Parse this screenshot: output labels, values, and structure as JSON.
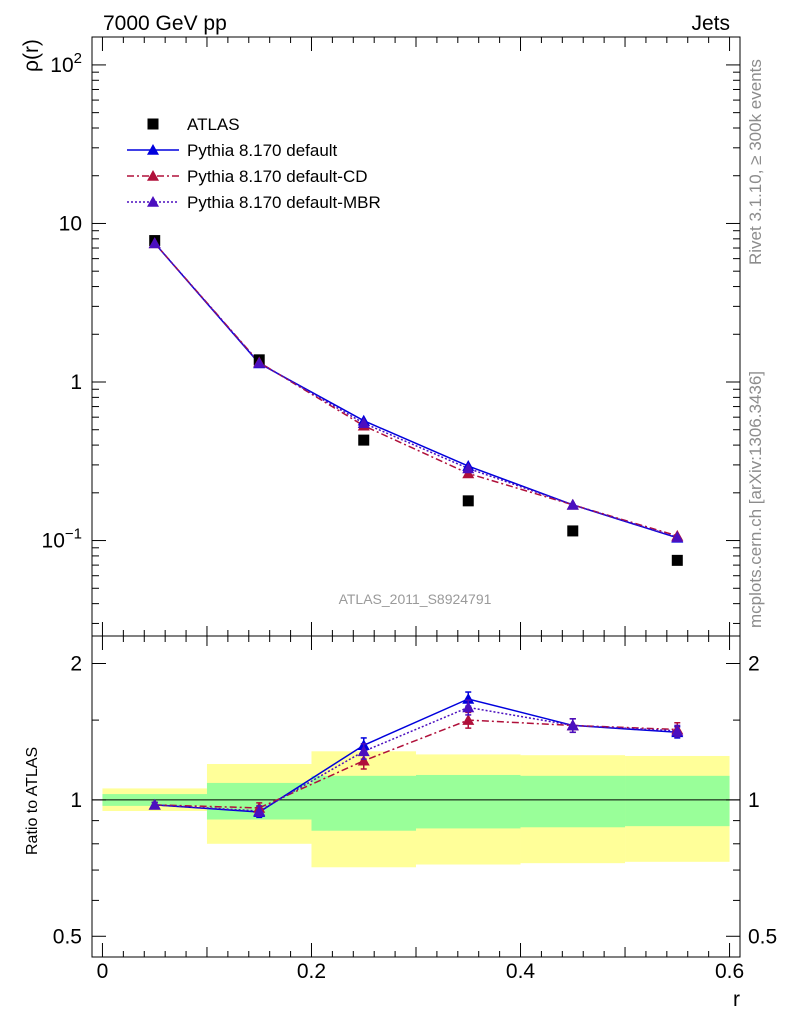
{
  "header": {
    "left": "7000 GeV pp",
    "right": "Jets"
  },
  "side_labels": {
    "rivet": "Rivet 3.1.10, ≥ 300k events",
    "mcplots": "mcplots.cern.ch [arXiv:1306.3436]"
  },
  "watermark": "ATLAS_2011_S8924791",
  "chart_data": [
    {
      "type": "line",
      "panel": "main",
      "ylabel": "ρ(r)",
      "yscale": "log",
      "ylim": [
        0.025,
        150
      ],
      "xlim": [
        -0.01,
        0.61
      ],
      "y_ticks": [
        {
          "value": 0.1,
          "base": "10",
          "exp": "−1"
        },
        {
          "value": 1,
          "label": "1"
        },
        {
          "value": 10,
          "label": "10"
        },
        {
          "value": 100,
          "base": "10",
          "exp": "2"
        }
      ],
      "legend_position": "top-left",
      "series": [
        {
          "name": "ATLAS",
          "marker": "square",
          "color": "#000000",
          "x": [
            0.05,
            0.15,
            0.25,
            0.35,
            0.45,
            0.55
          ],
          "y": [
            7.8,
            1.38,
            0.43,
            0.178,
            0.115,
            0.075
          ]
        },
        {
          "name": "Pythia 8.170 default",
          "marker": "triangle",
          "line": "solid",
          "color": "#0000dd",
          "x": [
            0.05,
            0.15,
            0.25,
            0.35,
            0.45,
            0.55
          ],
          "y": [
            7.5,
            1.31,
            0.57,
            0.295,
            0.168,
            0.104
          ]
        },
        {
          "name": "Pythia 8.170 default-CD",
          "marker": "triangle",
          "line": "dashdot",
          "color": "#b0103a",
          "x": [
            0.05,
            0.15,
            0.25,
            0.35,
            0.45,
            0.55
          ],
          "y": [
            7.5,
            1.33,
            0.53,
            0.265,
            0.168,
            0.107
          ]
        },
        {
          "name": "Pythia 8.170 default-MBR",
          "marker": "triangle",
          "line": "dotted",
          "color": "#4b0fbf",
          "x": [
            0.05,
            0.15,
            0.25,
            0.35,
            0.45,
            0.55
          ],
          "y": [
            7.5,
            1.32,
            0.55,
            0.285,
            0.168,
            0.105
          ]
        }
      ]
    },
    {
      "type": "line",
      "panel": "ratio",
      "ylabel": "Ratio to ATLAS",
      "xlabel": "r",
      "ylim": [
        0.45,
        2.3
      ],
      "xlim": [
        -0.01,
        0.61
      ],
      "x_ticks": [
        0,
        0.2,
        0.4,
        0.6
      ],
      "x_tick_labels": [
        "0",
        "0.2",
        "0.4",
        "0.6"
      ],
      "y_ticks": [
        0.5,
        1,
        2
      ],
      "y_tick_labels": [
        "0.5",
        "1",
        "2"
      ],
      "bands": {
        "x_edges": [
          0.0,
          0.1,
          0.2,
          0.3,
          0.4,
          0.5,
          0.6
        ],
        "inner_lo": [
          0.97,
          0.905,
          0.855,
          0.865,
          0.87,
          0.875
        ],
        "inner_hi": [
          1.03,
          1.09,
          1.13,
          1.135,
          1.13,
          1.13
        ],
        "outer_lo": [
          0.945,
          0.8,
          0.71,
          0.72,
          0.725,
          0.73
        ],
        "outer_hi": [
          1.06,
          1.2,
          1.28,
          1.26,
          1.255,
          1.25
        ],
        "inner_color": "#99ff99",
        "outer_color": "#ffff99"
      },
      "series": [
        {
          "name": "Pythia 8.170 default",
          "color": "#0000dd",
          "x": [
            0.05,
            0.15,
            0.25,
            0.35,
            0.45,
            0.55
          ],
          "y": [
            0.975,
            0.94,
            1.32,
            1.67,
            1.46,
            1.41
          ],
          "err": [
            0.012,
            0.025,
            0.05,
            0.06,
            0.05,
            0.04
          ]
        },
        {
          "name": "Pythia 8.170 default-CD",
          "color": "#b0103a",
          "x": [
            0.05,
            0.15,
            0.25,
            0.35,
            0.45,
            0.55
          ],
          "y": [
            0.975,
            0.96,
            1.22,
            1.5,
            1.46,
            1.43
          ],
          "err": [
            0.012,
            0.025,
            0.05,
            0.06,
            0.05,
            0.05
          ]
        },
        {
          "name": "Pythia 8.170 default-MBR",
          "color": "#4b0fbf",
          "x": [
            0.05,
            0.15,
            0.25,
            0.35,
            0.45,
            0.55
          ],
          "y": [
            0.975,
            0.945,
            1.28,
            1.6,
            1.46,
            1.42
          ],
          "err": [
            0.012,
            0.025,
            0.05,
            0.06,
            0.05,
            0.04
          ]
        }
      ]
    }
  ]
}
